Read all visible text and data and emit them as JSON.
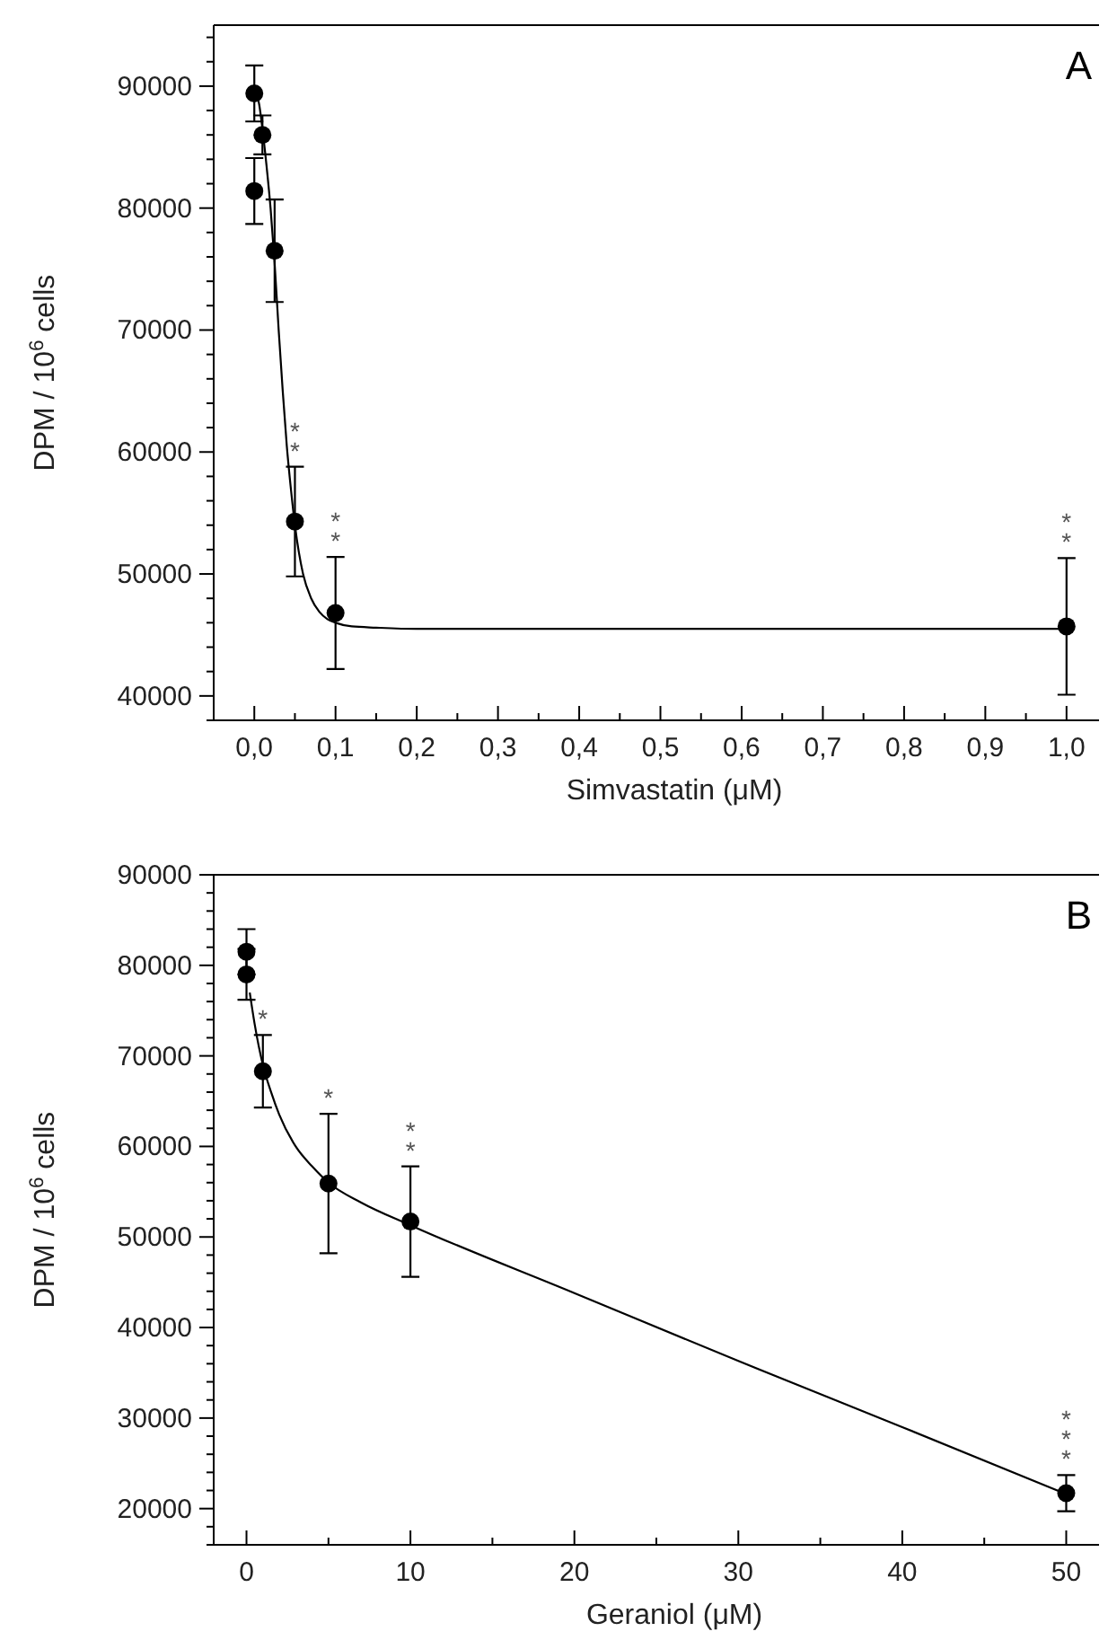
{
  "chart_data": [
    {
      "type": "scatter",
      "xlabel": "Simvastatin (μM)",
      "ylabel": "DPM / 10$^{6}$ cells",
      "annotations": [
        "A",
        {
          "text": "**",
          "x": 0.05,
          "y": 58800
        },
        {
          "text": "**",
          "x": 0.1,
          "y": 51400
        },
        {
          "text": "**",
          "x": 1.0,
          "y": 51300
        }
      ],
      "xlim": [
        -0.05,
        1.04
      ],
      "ylim": [
        38000,
        95000
      ],
      "xticks": [
        {
          "value": 0,
          "label": "0,0"
        },
        {
          "value": 0.05,
          "label": null
        },
        {
          "value": 0.1,
          "label": "0,1"
        },
        {
          "value": 0.15,
          "label": null
        },
        {
          "value": 0.2,
          "label": "0,2"
        },
        {
          "value": 0.25,
          "label": null
        },
        {
          "value": 0.3,
          "label": "0,3"
        },
        {
          "value": 0.35,
          "label": null
        },
        {
          "value": 0.4,
          "label": "0,4"
        },
        {
          "value": 0.45,
          "label": null
        },
        {
          "value": 0.5,
          "label": "0,5"
        },
        {
          "value": 0.55,
          "label": null
        },
        {
          "value": 0.6,
          "label": "0,6"
        },
        {
          "value": 0.65,
          "label": null
        },
        {
          "value": 0.7,
          "label": "0,7"
        },
        {
          "value": 0.75,
          "label": null
        },
        {
          "value": 0.8,
          "label": "0,8"
        },
        {
          "value": 0.85,
          "label": null
        },
        {
          "value": 0.9,
          "label": "0,9"
        },
        {
          "value": 0.95,
          "label": null
        },
        {
          "value": 1.0,
          "label": "1,0"
        }
      ],
      "yticks": [
        {
          "value": 38000,
          "label": null
        },
        40000,
        {
          "value": 42000,
          "label": null
        },
        {
          "value": 44000,
          "label": null
        },
        {
          "value": 46000,
          "label": null
        },
        {
          "value": 48000,
          "label": null
        },
        50000,
        {
          "value": 52000,
          "label": null
        },
        {
          "value": 54000,
          "label": null
        },
        {
          "value": 56000,
          "label": null
        },
        {
          "value": 58000,
          "label": null
        },
        60000,
        {
          "value": 62000,
          "label": null
        },
        {
          "value": 64000,
          "label": null
        },
        {
          "value": 66000,
          "label": null
        },
        {
          "value": 68000,
          "label": null
        },
        70000,
        {
          "value": 72000,
          "label": null
        },
        {
          "value": 74000,
          "label": null
        },
        {
          "value": 76000,
          "label": null
        },
        {
          "value": 78000,
          "label": null
        },
        80000,
        {
          "value": 82000,
          "label": null
        },
        {
          "value": 84000,
          "label": null
        },
        {
          "value": 86000,
          "label": null
        },
        {
          "value": 88000,
          "label": null
        },
        90000,
        {
          "value": 92000,
          "label": null
        },
        {
          "value": 94000,
          "label": null
        }
      ],
      "series": [
        {
          "marker": "circle",
          "color": "#000000",
          "x": [
            0,
            0,
            0.01,
            0.025,
            0.05,
            0.1,
            1.0
          ],
          "values": [
            81400,
            89400,
            86000,
            76500,
            54300,
            46800,
            45700
          ],
          "errors": [
            2700,
            2300,
            1600,
            4200,
            4500,
            4600,
            5600
          ]
        },
        {
          "type": "line",
          "line_style": "solid",
          "color": "#000000",
          "x": [
            0.003,
            0.006,
            0.01,
            0.015,
            0.02,
            0.025,
            0.03,
            0.035,
            0.04,
            0.045,
            0.05,
            0.06,
            0.07,
            0.08,
            0.09,
            0.1,
            0.12,
            0.15,
            0.2,
            0.5,
            1.0
          ],
          "values": [
            89400,
            88500,
            86500,
            83500,
            80000,
            75500,
            70000,
            65000,
            60500,
            57000,
            54000,
            50000,
            48000,
            46900,
            46300,
            46000,
            45700,
            45600,
            45500,
            45500,
            45500
          ]
        }
      ]
    },
    {
      "type": "scatter",
      "xlabel": "Geraniol (μM)",
      "ylabel": "DPM / 10$^{6}$ cells",
      "annotations": [
        "B",
        {
          "text": "*",
          "x": 1,
          "y": 72300
        },
        {
          "text": "*",
          "x": 5,
          "y": 63600
        },
        {
          "text": "**",
          "x": 10,
          "y": 57800
        },
        {
          "text": "***",
          "x": 50,
          "y": 23700
        }
      ],
      "xlim": [
        -2,
        52
      ],
      "ylim": [
        16000,
        90000
      ],
      "xticks": [
        0,
        {
          "value": 5,
          "label": null
        },
        10,
        {
          "value": 15,
          "label": null
        },
        20,
        {
          "value": 25,
          "label": null
        },
        30,
        {
          "value": 35,
          "label": null
        },
        40,
        {
          "value": 45,
          "label": null
        },
        50
      ],
      "yticks": [
        {
          "value": 16000,
          "label": null
        },
        {
          "value": 18000,
          "label": null
        },
        20000,
        {
          "value": 22000,
          "label": null
        },
        {
          "value": 24000,
          "label": null
        },
        {
          "value": 26000,
          "label": null
        },
        {
          "value": 28000,
          "label": null
        },
        30000,
        {
          "value": 32000,
          "label": null
        },
        {
          "value": 34000,
          "label": null
        },
        {
          "value": 36000,
          "label": null
        },
        {
          "value": 38000,
          "label": null
        },
        40000,
        {
          "value": 42000,
          "label": null
        },
        {
          "value": 44000,
          "label": null
        },
        {
          "value": 46000,
          "label": null
        },
        {
          "value": 48000,
          "label": null
        },
        50000,
        {
          "value": 52000,
          "label": null
        },
        {
          "value": 54000,
          "label": null
        },
        {
          "value": 56000,
          "label": null
        },
        {
          "value": 58000,
          "label": null
        },
        60000,
        {
          "value": 62000,
          "label": null
        },
        {
          "value": 64000,
          "label": null
        },
        {
          "value": 66000,
          "label": null
        },
        {
          "value": 68000,
          "label": null
        },
        70000,
        {
          "value": 72000,
          "label": null
        },
        {
          "value": 74000,
          "label": null
        },
        {
          "value": 76000,
          "label": null
        },
        {
          "value": 78000,
          "label": null
        },
        80000,
        {
          "value": 82000,
          "label": null
        },
        {
          "value": 84000,
          "label": null
        },
        {
          "value": 86000,
          "label": null
        },
        {
          "value": 88000,
          "label": null
        },
        90000
      ],
      "series": [
        {
          "marker": "circle",
          "color": "#000000",
          "x": [
            0,
            0,
            1,
            5,
            10,
            50
          ],
          "values": [
            81500,
            79000,
            68300,
            55900,
            51700,
            21700
          ],
          "errors": [
            2500,
            2800,
            4000,
            7700,
            6100,
            2000
          ]
        },
        {
          "type": "line",
          "line_style": "solid",
          "color": "#000000",
          "x": [
            0.2,
            0.5,
            1,
            1.5,
            2,
            3,
            4,
            5,
            7,
            10,
            20,
            30,
            40,
            50
          ],
          "values": [
            77000,
            73500,
            69000,
            66000,
            63500,
            60000,
            57800,
            56000,
            53800,
            51300,
            43800,
            36300,
            29000,
            21600
          ]
        }
      ]
    }
  ]
}
